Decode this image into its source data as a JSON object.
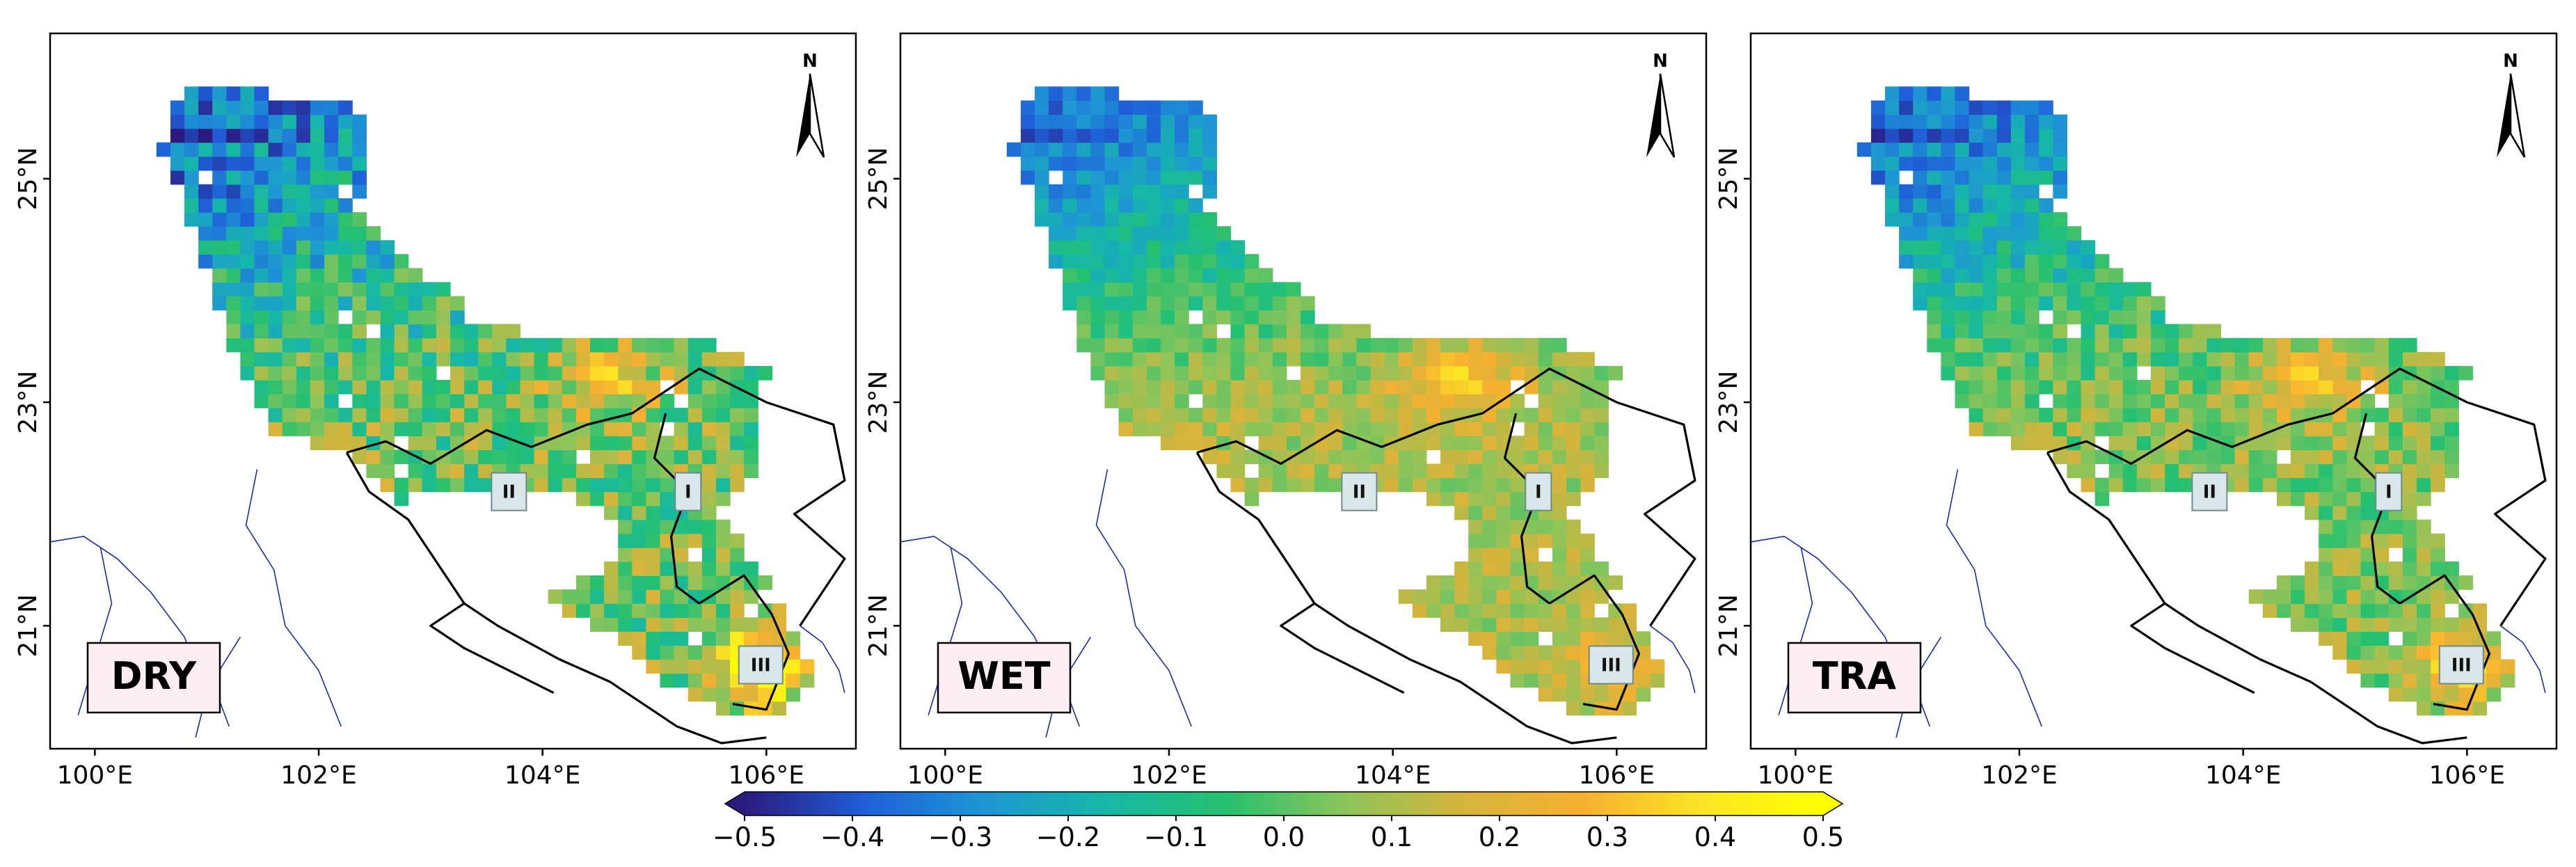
{
  "panels": [
    {
      "id": "dry",
      "label": "DRY",
      "profile": "dry"
    },
    {
      "id": "wet",
      "label": "WET",
      "profile": "wet"
    },
    {
      "id": "tra",
      "label": "TRA",
      "profile": "tra"
    }
  ],
  "axes": {
    "x_ticks": [
      "100°E",
      "102°E",
      "104°E",
      "106°E"
    ],
    "y_ticks": [
      "25°N",
      "23°N",
      "21°N"
    ],
    "extent": {
      "lon_min": 99.6,
      "lon_max": 106.8,
      "lat_min": 19.9,
      "lat_max": 26.3
    }
  },
  "north_arrow": {
    "label": "N"
  },
  "regions": [
    {
      "id": "region-I",
      "label": "I"
    },
    {
      "id": "region-II",
      "label": "II"
    },
    {
      "id": "region-III",
      "label": "III"
    }
  ],
  "colorbar": {
    "ticks": [
      "−0.5",
      "−0.4",
      "−0.3",
      "−0.2",
      "−0.1",
      "0.0",
      "0.1",
      "0.2",
      "0.3",
      "0.4",
      "0.5"
    ],
    "min": -0.5,
    "max": 0.5,
    "extend": "both",
    "colors": [
      "#2b1a7e",
      "#1f5fd8",
      "#1e96d4",
      "#16b7a8",
      "#25c070",
      "#8cc45a",
      "#d6b43c",
      "#f7b030",
      "#fbe526",
      "#ffff00"
    ]
  },
  "colors": {
    "boundary": "#000000",
    "rivers": "#1b2ba3",
    "label_box": "#fdeff1"
  }
}
